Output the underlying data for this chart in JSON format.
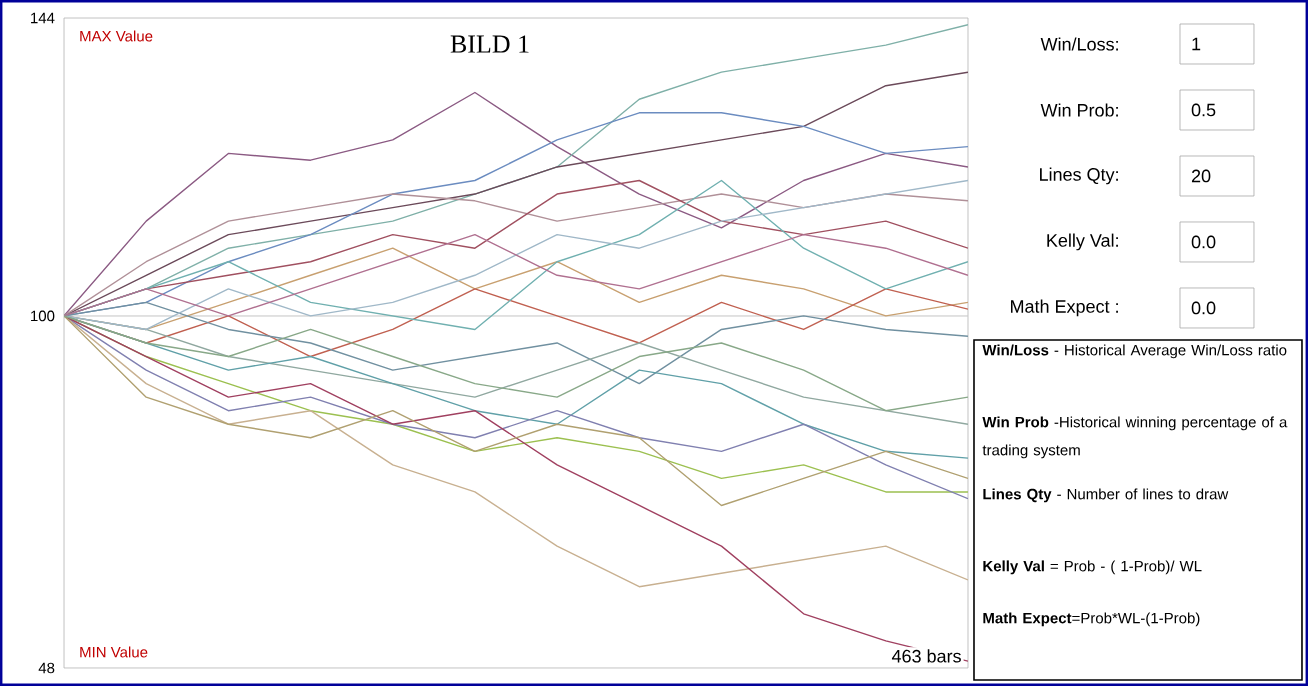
{
  "chart_data": {
    "type": "line",
    "title": "BILD 1",
    "categories": [
      null,
      null,
      null,
      null,
      null,
      null,
      null,
      null,
      null,
      null,
      null,
      null
    ],
    "ylim": [
      48,
      144
    ],
    "yticks": [
      48,
      100,
      144
    ],
    "ref_lines": [
      {
        "axis": "y",
        "value": 100,
        "color": "#c8c8c8"
      }
    ],
    "annotations": [
      "MAX Value",
      "MIN Value",
      "463 bars",
      "Win/Loss:",
      "1",
      "Win Prob:",
      "0.5",
      "Lines Qty:",
      "20",
      "Kelly Val:",
      "0.0",
      "Math Expect :",
      "0.0",
      "**Win/Loss** - Historical Average Win/Loss ratio",
      "**Win Prob** -Historical winning percentage of a trading system",
      "**Lines Qty** - Number of lines to draw",
      "**Kelly Val** = Prob - ( 1-Prob)/ WL",
      "**Math Expect**=Prob*WL-(1-Prob)"
    ],
    "series": [
      {
        "color": "#8b5a83",
        "values": [
          100,
          114,
          124,
          123,
          126,
          133,
          125,
          118,
          113,
          120,
          124,
          122
        ]
      },
      {
        "color": "#7fb0a8",
        "values": [
          100,
          104,
          110,
          112,
          114,
          118,
          122,
          132,
          136,
          138,
          140,
          143
        ]
      },
      {
        "color": "#6b4a5a",
        "values": [
          100,
          106,
          112,
          114,
          116,
          118,
          122,
          124,
          126,
          128,
          134,
          136
        ]
      },
      {
        "color": "#6b8cc0",
        "values": [
          100,
          102,
          108,
          112,
          118,
          120,
          126,
          130,
          130,
          128,
          124,
          125
        ]
      },
      {
        "color": "#b09098",
        "values": [
          100,
          108,
          114,
          116,
          118,
          117,
          114,
          116,
          118,
          116,
          118,
          117
        ]
      },
      {
        "color": "#a05060",
        "values": [
          100,
          104,
          106,
          108,
          112,
          110,
          118,
          120,
          114,
          112,
          114,
          110
        ]
      },
      {
        "color": "#c8a070",
        "values": [
          100,
          98,
          102,
          106,
          110,
          104,
          108,
          102,
          106,
          104,
          100,
          102
        ]
      },
      {
        "color": "#c06050",
        "values": [
          100,
          96,
          100,
          94,
          98,
          104,
          100,
          96,
          102,
          98,
          104,
          101
        ]
      },
      {
        "color": "#7090a0",
        "values": [
          100,
          102,
          98,
          96,
          92,
          94,
          96,
          90,
          98,
          100,
          98,
          97
        ]
      },
      {
        "color": "#70b0b0",
        "values": [
          100,
          104,
          108,
          102,
          100,
          98,
          108,
          112,
          120,
          110,
          104,
          108
        ]
      },
      {
        "color": "#90a8a0",
        "values": [
          100,
          98,
          94,
          92,
          90,
          88,
          92,
          96,
          92,
          88,
          86,
          84
        ]
      },
      {
        "color": "#60a0a8",
        "values": [
          100,
          96,
          92,
          94,
          90,
          86,
          84,
          92,
          90,
          84,
          80,
          79
        ]
      },
      {
        "color": "#9cc050",
        "values": [
          100,
          94,
          90,
          86,
          84,
          80,
          82,
          80,
          76,
          78,
          74,
          74
        ]
      },
      {
        "color": "#8080b0",
        "values": [
          100,
          92,
          86,
          88,
          84,
          82,
          86,
          82,
          80,
          84,
          78,
          73
        ]
      },
      {
        "color": "#c8b090",
        "values": [
          100,
          90,
          84,
          86,
          78,
          74,
          66,
          60,
          62,
          64,
          66,
          61
        ]
      },
      {
        "color": "#a04060",
        "values": [
          100,
          94,
          88,
          90,
          84,
          86,
          78,
          72,
          66,
          56,
          52,
          49
        ]
      },
      {
        "color": "#b0a070",
        "values": [
          100,
          88,
          84,
          82,
          86,
          80,
          84,
          82,
          72,
          76,
          80,
          76
        ]
      },
      {
        "color": "#a0b8c8",
        "values": [
          100,
          98,
          104,
          100,
          102,
          106,
          112,
          110,
          114,
          116,
          118,
          120
        ]
      },
      {
        "color": "#b07090",
        "values": [
          100,
          104,
          100,
          104,
          108,
          112,
          106,
          104,
          108,
          112,
          110,
          106
        ]
      },
      {
        "color": "#88a888",
        "values": [
          100,
          96,
          94,
          98,
          94,
          90,
          88,
          94,
          96,
          92,
          86,
          88
        ]
      }
    ]
  }
}
